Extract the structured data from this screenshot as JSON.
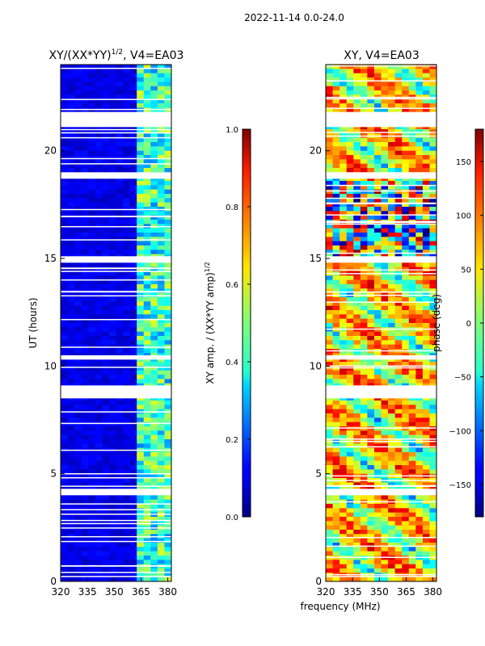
{
  "suptitle": "2022-11-14 0.0-24.0",
  "chart_data": [
    {
      "type": "heatmap",
      "title": "XY/(XX*YY)",
      "title_exponent": "1/2",
      "title_suffix": ", V4=EA03",
      "xlabel": "",
      "ylabel": "UT (hours)",
      "xlim": [
        320,
        382
      ],
      "ylim": [
        0,
        24
      ],
      "xticks": [
        320,
        335,
        350,
        365,
        380
      ],
      "yticks": [
        0,
        5,
        10,
        15,
        20
      ],
      "colorbar": {
        "label": "XY amp. / (XX*YY amp)",
        "label_exponent": "1/2",
        "range": [
          0.0,
          1.0
        ],
        "ticks": [
          "0.0",
          "0.2",
          "0.4",
          "0.6",
          "0.8",
          "1.0"
        ],
        "colormap": "jet"
      },
      "bright_channel_band_mhz": [
        363,
        382
      ],
      "flagged_gaps_hours": [
        [
          21.1,
          21.8
        ],
        [
          18.7,
          19.0
        ],
        [
          14.8,
          15.1
        ],
        [
          10.3,
          10.5
        ],
        [
          8.5,
          9.1
        ],
        [
          4.0,
          4.3
        ]
      ]
    },
    {
      "type": "heatmap",
      "title": "XY, V4=EA03",
      "xlabel": "frequency (MHz)",
      "ylabel": "",
      "xlim": [
        320,
        382
      ],
      "ylim": [
        0,
        24
      ],
      "xticks": [
        320,
        335,
        350,
        365,
        380
      ],
      "yticks": [
        0,
        5,
        10,
        15,
        20
      ],
      "colorbar": {
        "label": "phase (deg)",
        "range": [
          -180,
          180
        ],
        "ticks": [
          "−150",
          "−100",
          "−50",
          "0",
          "50",
          "100",
          "150"
        ],
        "tick_values": [
          -150,
          -100,
          -50,
          0,
          50,
          100,
          150
        ],
        "colormap": "jet"
      },
      "noisy_interval_hours": [
        15.1,
        18.5
      ],
      "flagged_gaps_hours": [
        [
          21.1,
          21.8
        ],
        [
          18.7,
          19.0
        ],
        [
          14.8,
          15.1
        ],
        [
          10.3,
          10.5
        ],
        [
          8.5,
          9.1
        ],
        [
          4.0,
          4.3
        ]
      ]
    }
  ]
}
